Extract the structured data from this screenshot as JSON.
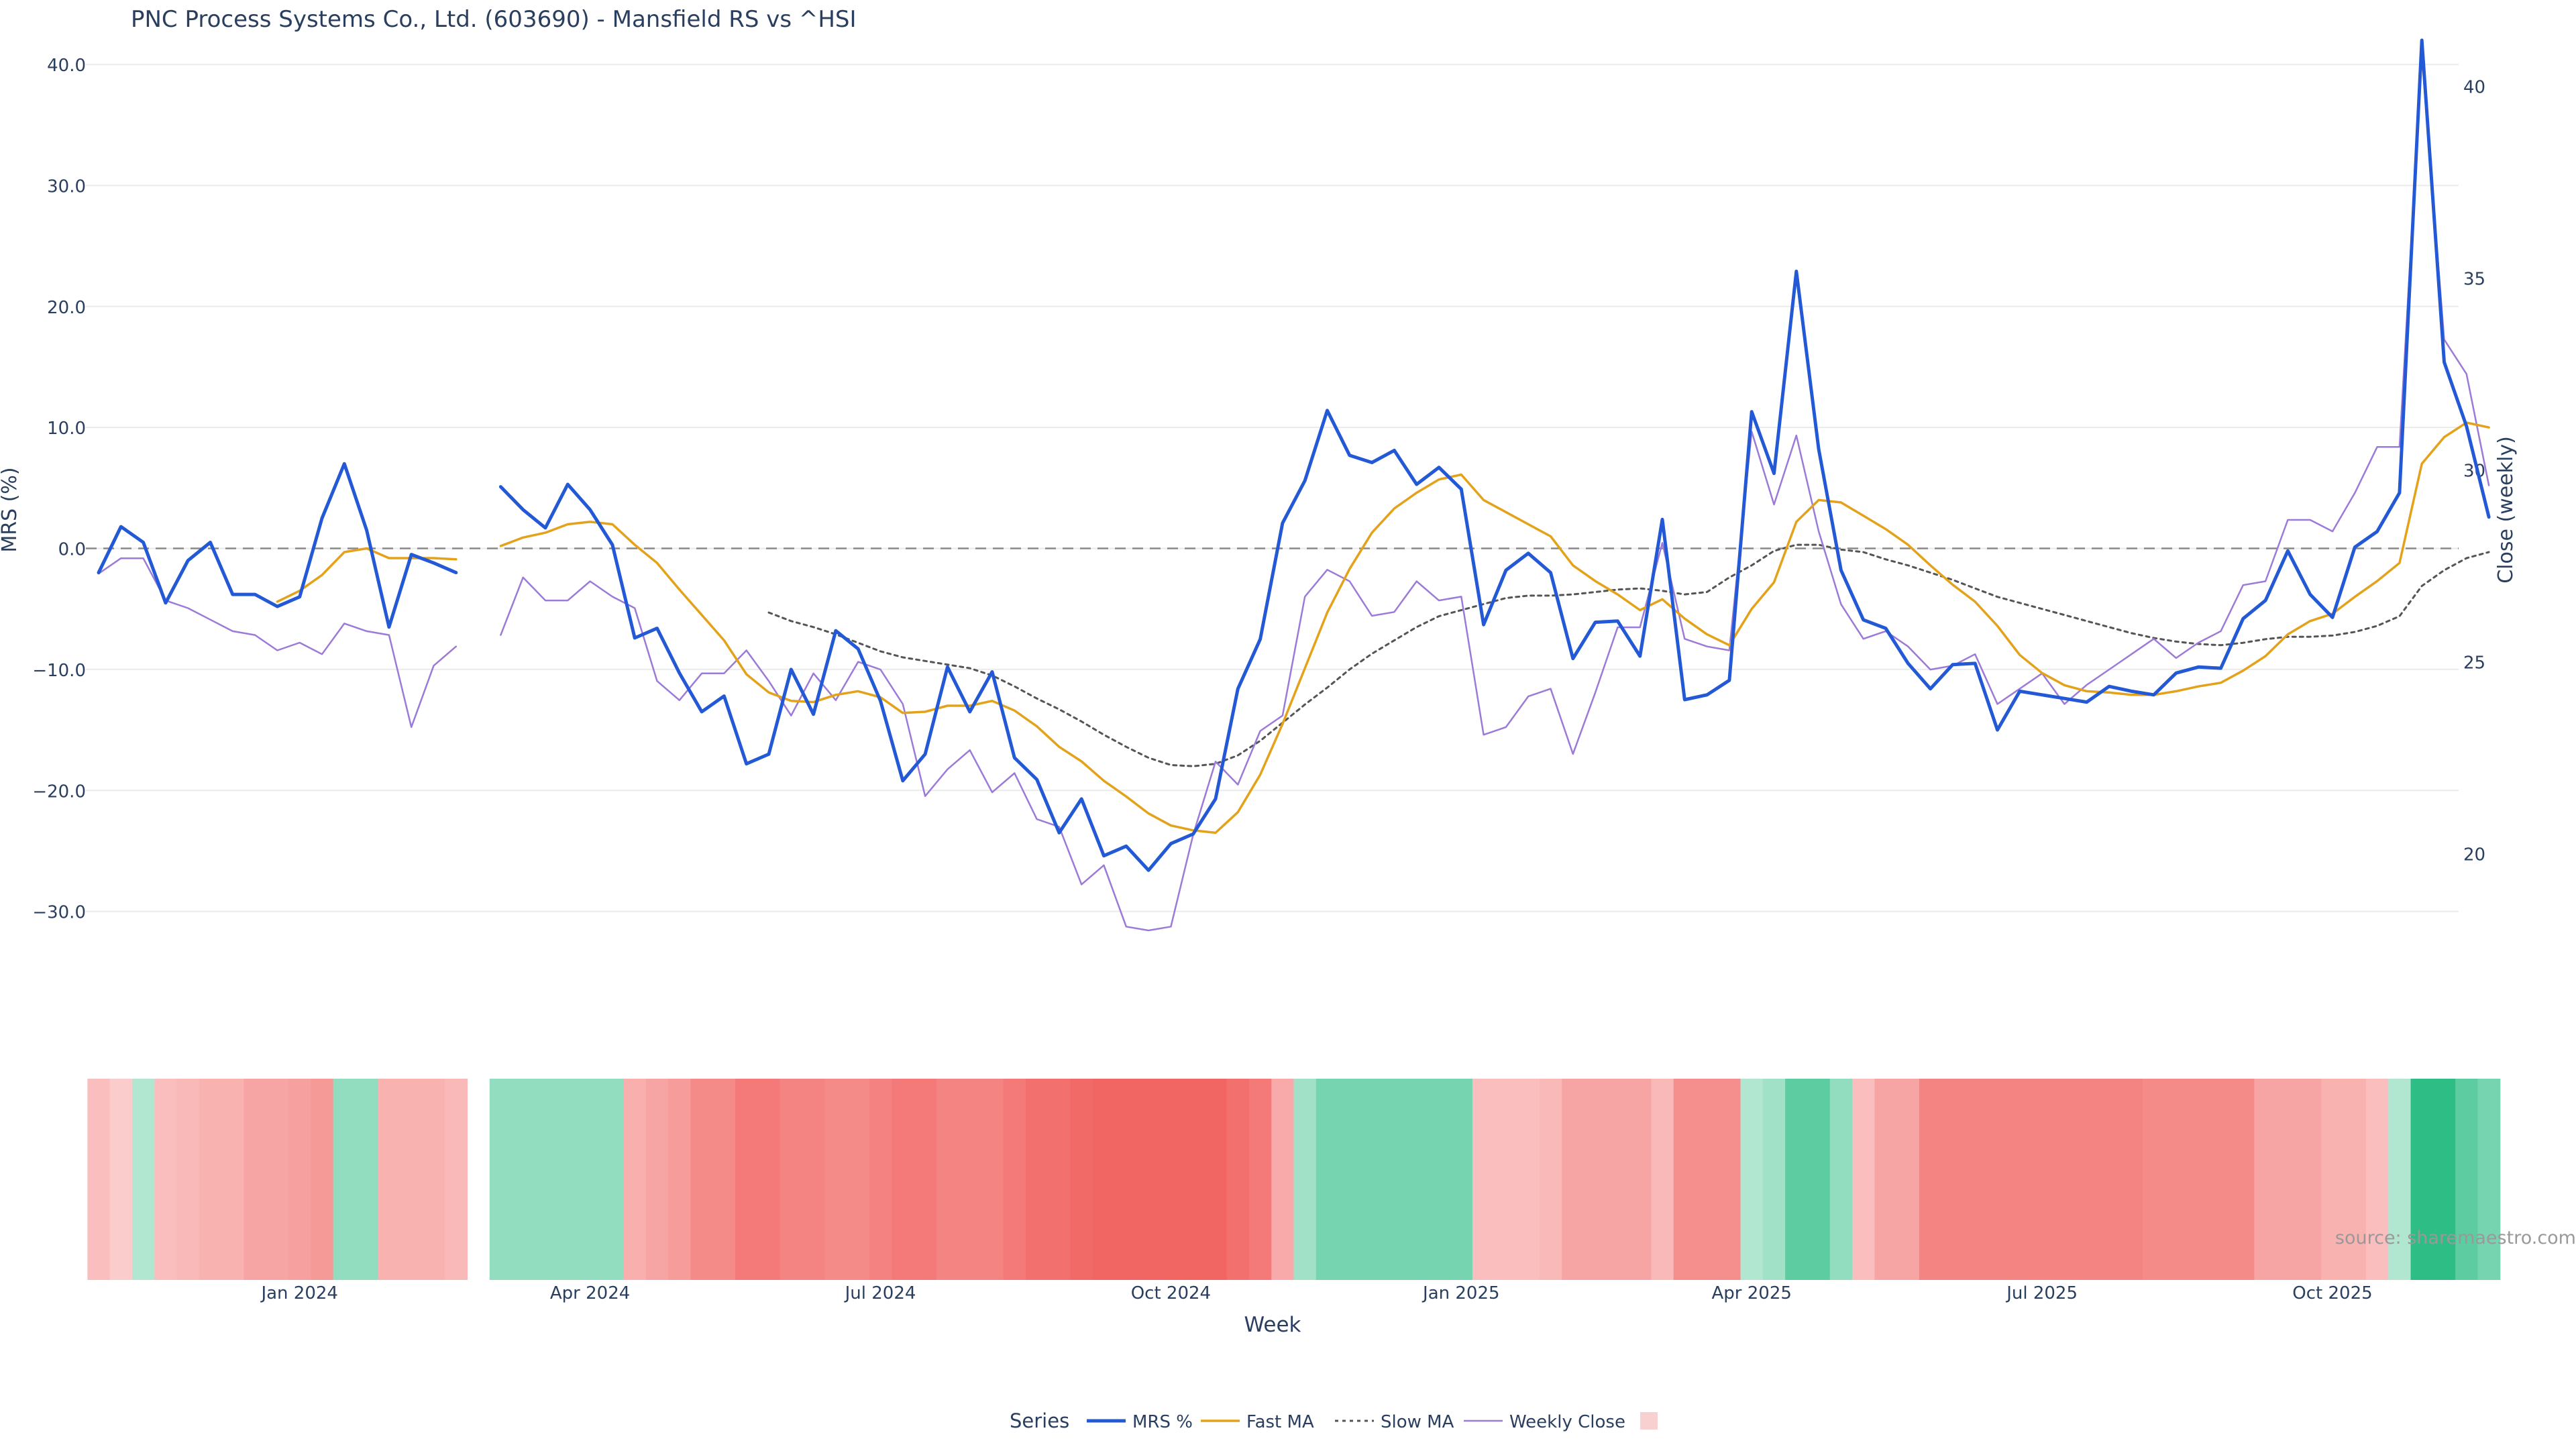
{
  "chart_data": {
    "type": "line",
    "title": "PNC Process Systems Co., Ltd. (603690) - Mansfield RS vs ^HSI",
    "xlabel": "Week",
    "ylabel": "MRS (%)",
    "ylabel_right": "Close (weekly)",
    "source": "source: sharemaestro.com",
    "grid": true,
    "ylim": [
      -39.5,
      42.0
    ],
    "y_ticks": [
      40,
      30,
      20,
      10,
      0,
      -10,
      -20,
      -30
    ],
    "y_tick_labels": [
      "40.0",
      "30.0",
      "20.0",
      "10.0",
      "0.0",
      "−10.0",
      "−20.0",
      "−30.0"
    ],
    "y2lim": [
      15.5,
      41.2
    ],
    "y2_ticks": [
      40,
      35,
      30,
      25,
      20
    ],
    "x_ticks": [
      {
        "week": 9,
        "label": "Jan 2024"
      },
      {
        "week": 22,
        "label": "Apr 2024"
      },
      {
        "week": 35,
        "label": "Jul 2024"
      },
      {
        "week": 48,
        "label": "Oct 2024"
      },
      {
        "week": 61,
        "label": "Jan 2025"
      },
      {
        "week": 74,
        "label": "Apr 2025"
      },
      {
        "week": 87,
        "label": "Jul 2025"
      },
      {
        "week": 100,
        "label": "Oct 2025"
      }
    ],
    "legend": {
      "title": "Series",
      "position": "bottom",
      "items": [
        "MRS %",
        "Fast MA",
        "Slow MA",
        "Weekly Close",
        ""
      ]
    },
    "colors": {
      "mrs": "#2459d6",
      "fast": "#e3a21a",
      "slow": "#555555",
      "close": "#9b7ad8",
      "zero": "#888888",
      "pos": "#2ebd85",
      "neg": "#ef5350"
    },
    "series": [
      {
        "name": "MRS %",
        "start_week": 0,
        "values": [
          -2,
          1.8,
          0.5,
          -4.5,
          -1,
          0.5,
          -3.8,
          -3.8,
          -4.8,
          -4,
          2.5,
          7,
          1.5,
          -6.5,
          -0.5,
          -1.2,
          -2,
          null,
          5.1,
          3.2,
          1.7,
          5.3,
          3.2,
          0.3,
          -7.4,
          -6.6,
          -10.3,
          -13.5,
          -12.2,
          -17.8,
          -17.0,
          -10.0,
          -13.7,
          -6.8,
          -8.3,
          -12.6,
          -19.2,
          -17.0,
          -9.8,
          -13.5,
          -10.2,
          -17.3,
          -19.1,
          -23.5,
          -20.7,
          -25.4,
          -24.6,
          -26.6,
          -24.4,
          -23.6,
          -20.7,
          -11.6,
          -7.5,
          2.1,
          5.6,
          11.4,
          7.7,
          7.1,
          8.1,
          5.3,
          6.7,
          4.9,
          -6.3,
          -1.8,
          -0.4,
          -2.0,
          -9.1,
          -6.1,
          -6.0,
          -8.9,
          2.4,
          -12.5,
          -12.1,
          -10.9,
          11.3,
          6.2,
          22.9,
          8.2,
          -1.8,
          -5.9,
          -6.6,
          -9.5,
          -11.6,
          -9.6,
          -9.5,
          -15.0,
          -11.8,
          -12.1,
          -12.4,
          -12.7,
          -11.4,
          -11.8,
          -12.1,
          -10.3,
          -9.8,
          -9.9,
          -5.8,
          -4.3,
          -0.2,
          -3.8,
          -5.7,
          0.1,
          1.4,
          4.6,
          42.0,
          15.4,
          10.1,
          2.6
        ]
      },
      {
        "name": "Fast MA",
        "start_week": 0,
        "values": [
          null,
          null,
          null,
          null,
          null,
          null,
          null,
          null,
          -4.4,
          -3.5,
          -2.2,
          -0.3,
          0,
          -0.8,
          -0.8,
          -0.8,
          -0.9,
          null,
          0.2,
          0.9,
          1.3,
          2.0,
          2.2,
          2.0,
          0.3,
          -1.2,
          -3.4,
          -5.5,
          -7.6,
          -10.4,
          -11.9,
          -12.6,
          -12.7,
          -12.1,
          -11.8,
          -12.3,
          -13.6,
          -13.5,
          -13.0,
          -13.0,
          -12.6,
          -13.4,
          -14.7,
          -16.4,
          -17.6,
          -19.2,
          -20.5,
          -21.9,
          -22.9,
          -23.3,
          -23.5,
          -21.8,
          -18.7,
          -14.5,
          -9.9,
          -5.3,
          -1.7,
          1.3,
          3.3,
          4.6,
          5.7,
          6.1,
          4.0,
          3.0,
          2.0,
          1.0,
          -1.4,
          -2.7,
          -3.8,
          -5.1,
          -4.2,
          -5.8,
          -7.1,
          -8.0,
          -5.0,
          -2.8,
          2.2,
          4.0,
          3.8,
          2.7,
          1.6,
          0.3,
          -1.4,
          -3.0,
          -4.4,
          -6.4,
          -8.8,
          -10.3,
          -11.3,
          -11.8,
          -11.9,
          -12.1,
          -12.1,
          -11.8,
          -11.4,
          -11.1,
          -10.1,
          -8.9,
          -7.1,
          -6.0,
          -5.4,
          -4.0,
          -2.7,
          -1.2,
          7.0,
          9.2,
          10.4,
          10.0
        ]
      },
      {
        "name": "Slow MA",
        "start_week": 0,
        "values": [
          null,
          null,
          null,
          null,
          null,
          null,
          null,
          null,
          null,
          null,
          null,
          null,
          null,
          null,
          null,
          null,
          null,
          null,
          null,
          null,
          null,
          null,
          null,
          null,
          null,
          null,
          null,
          null,
          null,
          null,
          -5.3,
          -6.0,
          -6.5,
          -7.1,
          -7.8,
          -8.5,
          -9.0,
          -9.3,
          -9.6,
          -9.9,
          -10.5,
          -11.4,
          -12.4,
          -13.3,
          -14.3,
          -15.4,
          -16.4,
          -17.3,
          -17.9,
          -18.0,
          -17.8,
          -17.1,
          -15.9,
          -14.4,
          -12.9,
          -11.5,
          -10.0,
          -8.7,
          -7.6,
          -6.5,
          -5.6,
          -5.1,
          -4.6,
          -4.1,
          -3.9,
          -3.9,
          -3.8,
          -3.6,
          -3.4,
          -3.3,
          -3.5,
          -3.8,
          -3.6,
          -2.4,
          -1.4,
          -0.2,
          0.3,
          0.3,
          -0.1,
          -0.3,
          -0.9,
          -1.4,
          -2.0,
          -2.6,
          -3.3,
          -4.0,
          -4.5,
          -5.0,
          -5.5,
          -6.0,
          -6.5,
          -7.0,
          -7.4,
          -7.7,
          -7.9,
          -8.0,
          -7.8,
          -7.5,
          -7.3,
          -7.3,
          -7.2,
          -6.9,
          -6.4,
          -5.6,
          -3.1,
          -1.8,
          -0.8,
          -0.3
        ]
      },
      {
        "name": "Weekly Close",
        "start_week": 0,
        "values": [
          27.3,
          27.7,
          27.7,
          26.6,
          26.4,
          26.1,
          25.8,
          25.7,
          25.3,
          25.5,
          25.2,
          26.0,
          25.8,
          25.7,
          23.3,
          24.9,
          25.4,
          null,
          25.7,
          27.2,
          26.6,
          26.6,
          27.1,
          26.7,
          26.4,
          24.5,
          24.0,
          24.7,
          24.7,
          25.3,
          24.5,
          23.6,
          24.7,
          24.0,
          25.0,
          24.8,
          23.9,
          21.5,
          22.2,
          22.7,
          21.6,
          22.1,
          20.9,
          20.7,
          19.2,
          19.7,
          18.1,
          18.0,
          18.1,
          20.5,
          22.4,
          21.8,
          23.2,
          23.6,
          26.7,
          27.4,
          27.1,
          26.2,
          26.3,
          27.1,
          26.6,
          26.7,
          23.1,
          23.3,
          24.1,
          24.3,
          22.6,
          24.2,
          25.9,
          25.9,
          28.1,
          25.6,
          25.4,
          25.3,
          31.0,
          29.1,
          30.9,
          28.4,
          26.5,
          25.6,
          25.8,
          25.4,
          24.8,
          24.9,
          25.2,
          23.9,
          24.3,
          24.7,
          23.9,
          24.4,
          24.8,
          25.2,
          25.6,
          25.1,
          25.5,
          25.8,
          27.0,
          27.1,
          28.7,
          28.7,
          28.4,
          29.4,
          30.6,
          30.6,
          40.8,
          33.4,
          32.5,
          29.6
        ]
      },
      {
        "name": "",
        "start_week": 0,
        "type": "heatmap",
        "values": [
          -1,
          -0.5,
          1,
          -1,
          -1.2,
          -1.5,
          -1.5,
          -2,
          -2,
          -2.2,
          -2.5,
          2,
          2,
          -1.5,
          -1.5,
          -1.5,
          -1.2,
          null,
          2,
          2,
          2,
          2,
          2,
          2,
          -1.6,
          -2,
          -2.4,
          -3.2,
          -3.2,
          -4,
          -4,
          -3.5,
          -3.5,
          -3.2,
          -3.2,
          -3.6,
          -4,
          -4,
          -3.5,
          -3.5,
          -3.5,
          -4,
          -4.5,
          -4.5,
          -4.8,
          -5,
          -5,
          -5,
          -5,
          -5,
          -5,
          -4.5,
          -4,
          -1.8,
          1.5,
          3,
          3,
          3,
          3,
          3,
          3,
          3,
          -1,
          -1,
          -1,
          -1.2,
          -2,
          -2,
          -2,
          -2,
          -1.2,
          -3,
          -3,
          -3,
          1,
          1.5,
          4,
          4,
          2,
          -1,
          -2,
          -2,
          -3.5,
          -3.5,
          -3.5,
          -3.5,
          -3.5,
          -3.5,
          -3.5,
          -3.5,
          -3.5,
          -3.5,
          -3.2,
          -3.2,
          -3.2,
          -3.2,
          -3.2,
          -2,
          -2,
          -2,
          -1.5,
          -1.5,
          -1,
          1,
          6,
          6,
          4,
          3
        ]
      }
    ]
  }
}
